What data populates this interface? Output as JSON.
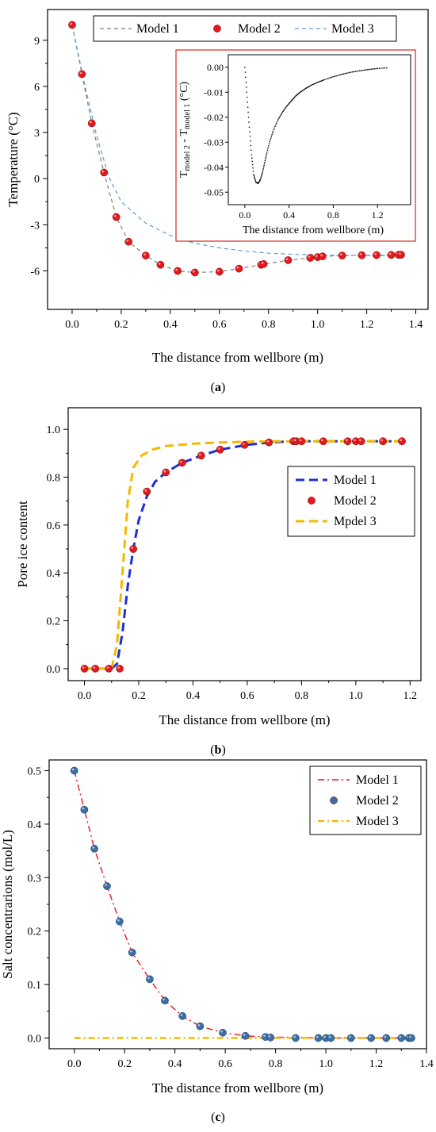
{
  "chart_data": [
    {
      "id": "a",
      "type": "scatter",
      "caption": "a",
      "xlabel": "The distance from wellbore (m)",
      "ylabel": "Temperature (°C)",
      "xlim": [
        -0.1,
        1.45
      ],
      "ylim": [
        -8.5,
        11
      ],
      "xticks": [
        0.0,
        0.2,
        0.4,
        0.6,
        0.8,
        1.0,
        1.2,
        1.4
      ],
      "yticks": [
        9,
        6,
        3,
        0,
        -3,
        -6
      ],
      "legend": "top",
      "series": [
        {
          "name": "Model 1",
          "style": "dashed",
          "color": "#7f7f7f",
          "x": [
            0.0,
            0.04,
            0.08,
            0.13,
            0.18,
            0.23,
            0.3,
            0.36,
            0.43,
            0.5,
            0.6,
            0.68,
            0.77,
            0.88,
            0.97,
            1.02,
            1.1,
            1.18,
            1.24,
            1.3,
            1.34
          ],
          "y": [
            10.0,
            6.8,
            3.6,
            0.4,
            -2.5,
            -4.1,
            -5.0,
            -5.6,
            -6.0,
            -6.1,
            -6.05,
            -5.85,
            -5.6,
            -5.3,
            -5.15,
            -5.05,
            -5.0,
            -4.98,
            -4.97,
            -4.96,
            -4.95
          ]
        },
        {
          "name": "Model 2",
          "style": "marker",
          "color": "#e31a1c",
          "x": [
            0.0,
            0.04,
            0.08,
            0.13,
            0.18,
            0.23,
            0.3,
            0.36,
            0.43,
            0.5,
            0.6,
            0.68,
            0.77,
            0.78,
            0.88,
            0.97,
            1.0,
            1.02,
            1.1,
            1.18,
            1.24,
            1.3,
            1.33,
            1.34
          ],
          "y": [
            10.0,
            6.8,
            3.6,
            0.4,
            -2.5,
            -4.1,
            -5.0,
            -5.6,
            -6.0,
            -6.1,
            -6.05,
            -5.85,
            -5.6,
            -5.55,
            -5.3,
            -5.15,
            -5.1,
            -5.05,
            -5.0,
            -4.98,
            -4.97,
            -4.96,
            -4.95,
            -4.95
          ]
        },
        {
          "name": "Model 3",
          "style": "dashed",
          "color": "#5b9bd5",
          "x": [
            0.0,
            0.05,
            0.1,
            0.15,
            0.2,
            0.3,
            0.4,
            0.5,
            0.6,
            0.7,
            0.8,
            0.9,
            1.0,
            1.1,
            1.2,
            1.3,
            1.34
          ],
          "y": [
            10.0,
            6.2,
            2.8,
            0.1,
            -1.5,
            -2.9,
            -3.7,
            -4.2,
            -4.5,
            -4.7,
            -4.85,
            -4.92,
            -4.96,
            -4.98,
            -4.99,
            -5.0,
            -5.0
          ]
        }
      ],
      "inset": {
        "xlabel": "The distance from wellbore (m)",
        "ylabel_main": "T",
        "ylabel_sub1": "model 2",
        "ylabel_mid": " - T",
        "ylabel_sub2": "model 1",
        "ylabel_unit": " (°C)",
        "xlim": [
          -0.15,
          1.5
        ],
        "ylim": [
          -0.055,
          0.005
        ],
        "xticks": [
          0.0,
          0.4,
          0.8,
          1.2
        ],
        "yticks": [
          0.0,
          -0.01,
          -0.02,
          -0.03,
          -0.04,
          -0.05
        ],
        "ytick_labels": [
          "0.00",
          "-0.01",
          "-0.02",
          "-0.03",
          "-0.04",
          "-0.05"
        ],
        "xtick_labels": [
          "0.0",
          "0.4",
          "0.8",
          "1.2"
        ],
        "series": {
          "x": [
            0.0,
            0.02,
            0.04,
            0.06,
            0.08,
            0.1,
            0.12,
            0.14,
            0.16,
            0.18,
            0.2,
            0.23,
            0.26,
            0.3,
            0.34,
            0.38,
            0.42,
            0.46,
            0.5,
            0.55,
            0.6,
            0.66,
            0.72,
            0.8,
            0.88,
            0.96,
            1.04,
            1.12,
            1.2,
            1.3
          ],
          "y": [
            0.0,
            -0.012,
            -0.024,
            -0.035,
            -0.043,
            -0.046,
            -0.0465,
            -0.045,
            -0.042,
            -0.038,
            -0.034,
            -0.029,
            -0.025,
            -0.021,
            -0.018,
            -0.0155,
            -0.0135,
            -0.0115,
            -0.01,
            -0.0085,
            -0.0072,
            -0.006,
            -0.005,
            -0.0038,
            -0.0028,
            -0.002,
            -0.0014,
            -0.0009,
            -0.0005,
            -0.0002
          ]
        }
      },
      "xtick_labels": [
        "0.0",
        "0.2",
        "0.4",
        "0.6",
        "0.8",
        "1.0",
        "1.2",
        "1.4"
      ],
      "ytick_labels": [
        "9",
        "6",
        "3",
        "0",
        "-3",
        "-6"
      ]
    },
    {
      "id": "b",
      "type": "scatter",
      "caption": "b",
      "xlabel": "The distance from wellbore (m)",
      "ylabel": "Pore ice content",
      "xlim": [
        -0.06,
        1.24
      ],
      "ylim": [
        -0.05,
        1.09
      ],
      "xticks": [
        0.0,
        0.2,
        0.4,
        0.6,
        0.8,
        1.0,
        1.2
      ],
      "xtick_labels": [
        "0.0",
        "0.2",
        "0.4",
        "0.6",
        "0.8",
        "1.0",
        "1.2"
      ],
      "yticks": [
        0.0,
        0.2,
        0.4,
        0.6,
        0.8,
        1.0
      ],
      "ytick_labels": [
        "0.0",
        "0.2",
        "0.4",
        "0.6",
        "0.8",
        "1.0"
      ],
      "legend": "right",
      "series": [
        {
          "name": "Model 1",
          "style": "dashed",
          "color": "#1f2fd6",
          "x": [
            0.0,
            0.05,
            0.1,
            0.12,
            0.14,
            0.16,
            0.18,
            0.2,
            0.23,
            0.26,
            0.3,
            0.36,
            0.43,
            0.5,
            0.6,
            0.68,
            0.77,
            0.88,
            1.0,
            1.1,
            1.17
          ],
          "y": [
            0.0,
            0.0,
            0.0,
            0.02,
            0.15,
            0.35,
            0.5,
            0.62,
            0.72,
            0.78,
            0.82,
            0.86,
            0.89,
            0.915,
            0.935,
            0.945,
            0.95,
            0.95,
            0.95,
            0.95,
            0.95
          ]
        },
        {
          "name": "Model 2",
          "style": "marker",
          "color": "#e31a1c",
          "x": [
            0.0,
            0.04,
            0.09,
            0.13,
            0.18,
            0.23,
            0.3,
            0.36,
            0.43,
            0.5,
            0.59,
            0.68,
            0.77,
            0.78,
            0.8,
            0.88,
            0.97,
            1.0,
            1.02,
            1.1,
            1.17
          ],
          "y": [
            0.0,
            0.0,
            0.0,
            0.0,
            0.5,
            0.74,
            0.82,
            0.86,
            0.89,
            0.915,
            0.935,
            0.945,
            0.95,
            0.95,
            0.95,
            0.95,
            0.95,
            0.95,
            0.95,
            0.95,
            0.95
          ]
        },
        {
          "name": "Mpdel 3",
          "style": "dashed",
          "color": "#f5b800",
          "x": [
            0.0,
            0.05,
            0.1,
            0.12,
            0.14,
            0.16,
            0.18,
            0.21,
            0.25,
            0.3,
            0.4,
            0.5,
            0.6,
            0.7,
            0.8,
            0.9,
            1.0,
            1.1,
            1.17
          ],
          "y": [
            0.0,
            0.0,
            0.0,
            0.1,
            0.4,
            0.7,
            0.84,
            0.89,
            0.915,
            0.93,
            0.94,
            0.945,
            0.948,
            0.95,
            0.95,
            0.95,
            0.95,
            0.95,
            0.95
          ]
        }
      ]
    },
    {
      "id": "c",
      "type": "scatter",
      "caption": "c",
      "xlabel": "The distance from wellbore (m)",
      "ylabel": "Salt concentrarions (mol/L)",
      "xlim": [
        -0.1,
        1.4
      ],
      "ylim": [
        -0.02,
        0.52
      ],
      "xticks": [
        0.0,
        0.2,
        0.4,
        0.6,
        0.8,
        1.0,
        1.2,
        1.4
      ],
      "xtick_labels": [
        "0.0",
        "0.2",
        "0.4",
        "0.6",
        "0.8",
        "1.0",
        "1.2",
        "1.4"
      ],
      "yticks": [
        0.0,
        0.1,
        0.2,
        0.3,
        0.4,
        0.5
      ],
      "ytick_labels": [
        "0.0",
        "0.1",
        "0.2",
        "0.3",
        "0.4",
        "0.5"
      ],
      "legend": "top-right",
      "series": [
        {
          "name": "Model 1",
          "style": "dashdot",
          "color": "#e31a1c",
          "x": [
            0.0,
            0.04,
            0.08,
            0.13,
            0.18,
            0.23,
            0.3,
            0.36,
            0.43,
            0.5,
            0.59,
            0.68,
            0.77,
            0.88,
            1.0,
            1.1,
            1.2,
            1.34
          ],
          "y": [
            0.5,
            0.427,
            0.354,
            0.284,
            0.218,
            0.16,
            0.11,
            0.07,
            0.041,
            0.022,
            0.01,
            0.004,
            0.002,
            0.001,
            0.0,
            0.0,
            0.0,
            0.0
          ]
        },
        {
          "name": "Model 2",
          "style": "marker",
          "color": "#3b6ea5",
          "x": [
            0.0,
            0.04,
            0.08,
            0.13,
            0.18,
            0.23,
            0.3,
            0.36,
            0.43,
            0.5,
            0.59,
            0.68,
            0.76,
            0.78,
            0.88,
            0.97,
            1.0,
            1.02,
            1.1,
            1.18,
            1.24,
            1.3,
            1.33,
            1.34
          ],
          "y": [
            0.5,
            0.427,
            0.354,
            0.284,
            0.218,
            0.16,
            0.11,
            0.07,
            0.041,
            0.022,
            0.01,
            0.004,
            0.002,
            0.001,
            0.0,
            0.0,
            0.0,
            0.0,
            0.0,
            0.0,
            0.0,
            0.0,
            0.0,
            0.0
          ]
        },
        {
          "name": "Model 3",
          "style": "dashdot",
          "color": "#f5b800",
          "x": [
            0.0,
            1.34
          ],
          "y": [
            0.0,
            0.0
          ]
        }
      ]
    }
  ]
}
